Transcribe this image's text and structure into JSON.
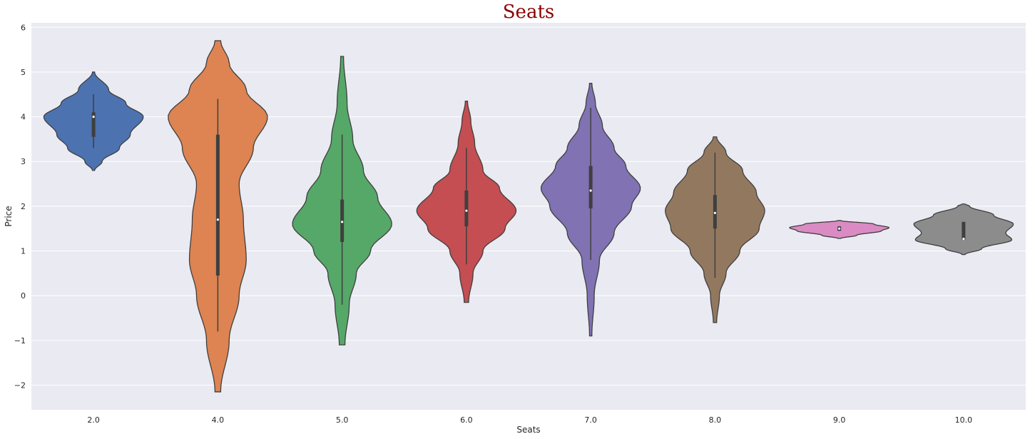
{
  "chart_data": {
    "type": "violin",
    "title": "Seats",
    "xlabel": "Seats",
    "ylabel": "Price",
    "ylim": [
      -2.55,
      6.1
    ],
    "yticks": [
      -2,
      -1,
      0,
      1,
      2,
      3,
      4,
      5,
      6
    ],
    "grid": true,
    "legend": "none",
    "categories": [
      "2.0",
      "4.0",
      "5.0",
      "6.0",
      "7.0",
      "8.0",
      "9.0",
      "10.0"
    ],
    "series": [
      {
        "category": "2.0",
        "color": "#4c72b0",
        "min": 2.8,
        "max": 5.0,
        "q1": 3.55,
        "median": 4.0,
        "q3": 4.1,
        "whisker_low": 3.3,
        "whisker_high": 4.5,
        "density": [
          [
            2.8,
            0.005
          ],
          [
            3.0,
            0.04
          ],
          [
            3.3,
            0.12
          ],
          [
            3.6,
            0.17
          ],
          [
            4.0,
            0.23
          ],
          [
            4.3,
            0.15
          ],
          [
            4.6,
            0.07
          ],
          [
            5.0,
            0.005
          ]
        ]
      },
      {
        "category": "4.0",
        "color": "#dd8452",
        "min": -2.15,
        "max": 5.7,
        "q1": 0.45,
        "median": 1.7,
        "q3": 3.6,
        "whisker_low": -0.8,
        "whisker_high": 4.4,
        "density": [
          [
            -2.15,
            0.002
          ],
          [
            -1.0,
            0.008
          ],
          [
            0.0,
            0.015
          ],
          [
            0.8,
            0.02
          ],
          [
            1.7,
            0.018
          ],
          [
            2.5,
            0.015
          ],
          [
            3.3,
            0.025
          ],
          [
            4.0,
            0.035
          ],
          [
            4.6,
            0.02
          ],
          [
            5.2,
            0.008
          ],
          [
            5.7,
            0.002
          ]
        ]
      },
      {
        "category": "5.0",
        "color": "#55a868",
        "min": -1.1,
        "max": 5.35,
        "q1": 1.2,
        "median": 1.65,
        "q3": 2.15,
        "whisker_low": -0.2,
        "whisker_high": 3.6,
        "density": [
          [
            -1.1,
            0.004
          ],
          [
            -0.2,
            0.01
          ],
          [
            0.5,
            0.02
          ],
          [
            1.0,
            0.04
          ],
          [
            1.6,
            0.07
          ],
          [
            2.2,
            0.05
          ],
          [
            2.8,
            0.03
          ],
          [
            3.5,
            0.015
          ],
          [
            4.3,
            0.007
          ],
          [
            5.35,
            0.002
          ]
        ]
      },
      {
        "category": "6.0",
        "color": "#c44e52",
        "min": -0.15,
        "max": 4.35,
        "q1": 1.55,
        "median": 1.9,
        "q3": 2.35,
        "whisker_low": 0.7,
        "whisker_high": 3.3,
        "density": [
          [
            -0.15,
            0.004
          ],
          [
            0.5,
            0.012
          ],
          [
            1.0,
            0.03
          ],
          [
            1.5,
            0.07
          ],
          [
            1.9,
            0.09
          ],
          [
            2.4,
            0.06
          ],
          [
            2.8,
            0.03
          ],
          [
            3.4,
            0.015
          ],
          [
            3.9,
            0.008
          ],
          [
            4.35,
            0.002
          ]
        ]
      },
      {
        "category": "7.0",
        "color": "#8172b3",
        "min": -0.9,
        "max": 4.75,
        "q1": 1.95,
        "median": 2.35,
        "q3": 2.9,
        "whisker_low": 0.8,
        "whisker_high": 4.2,
        "density": [
          [
            -0.9,
            0.002
          ],
          [
            0.0,
            0.006
          ],
          [
            0.8,
            0.015
          ],
          [
            1.4,
            0.04
          ],
          [
            2.0,
            0.07
          ],
          [
            2.4,
            0.085
          ],
          [
            2.9,
            0.06
          ],
          [
            3.3,
            0.04
          ],
          [
            3.8,
            0.02
          ],
          [
            4.3,
            0.008
          ],
          [
            4.75,
            0.002
          ]
        ]
      },
      {
        "category": "8.0",
        "color": "#937860",
        "min": -0.6,
        "max": 3.55,
        "q1": 1.5,
        "median": 1.85,
        "q3": 2.25,
        "whisker_low": 0.4,
        "whisker_high": 3.2,
        "density": [
          [
            -0.6,
            0.003
          ],
          [
            0.0,
            0.008
          ],
          [
            0.5,
            0.02
          ],
          [
            1.0,
            0.045
          ],
          [
            1.5,
            0.08
          ],
          [
            1.9,
            0.09
          ],
          [
            2.3,
            0.075
          ],
          [
            2.8,
            0.05
          ],
          [
            3.2,
            0.02
          ],
          [
            3.55,
            0.003
          ]
        ]
      },
      {
        "category": "9.0",
        "color": "#da8bc3",
        "min": 1.28,
        "max": 1.68,
        "q1": 1.45,
        "median": 1.5,
        "q3": 1.55,
        "whisker_low": 1.45,
        "whisker_high": 1.55,
        "density": [
          [
            1.28,
            0.03
          ],
          [
            1.35,
            0.35
          ],
          [
            1.45,
            0.85
          ],
          [
            1.52,
            1.0
          ],
          [
            1.6,
            0.7
          ],
          [
            1.68,
            0.03
          ]
        ]
      },
      {
        "category": "10.0",
        "color": "#8c8c8c",
        "min": 0.92,
        "max": 2.05,
        "q1": 1.25,
        "median": 1.27,
        "q3": 1.65,
        "whisker_low": 1.25,
        "whisker_high": 1.65,
        "density": [
          [
            0.92,
            0.01
          ],
          [
            1.05,
            0.12
          ],
          [
            1.25,
            0.32
          ],
          [
            1.4,
            0.28
          ],
          [
            1.6,
            0.33
          ],
          [
            1.8,
            0.2
          ],
          [
            2.0,
            0.04
          ],
          [
            2.05,
            0.01
          ]
        ]
      }
    ]
  }
}
